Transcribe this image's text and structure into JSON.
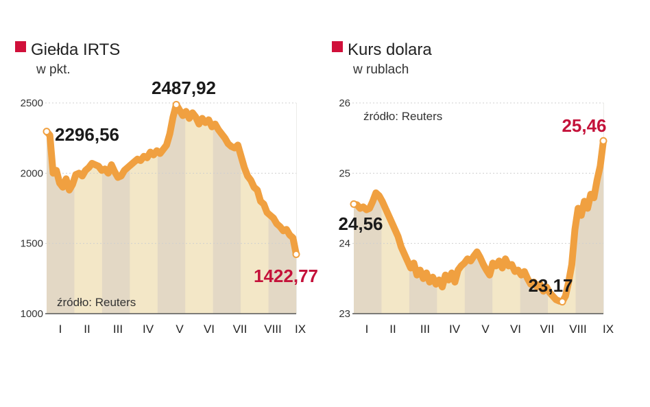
{
  "colors": {
    "marker": "#d0103a",
    "line": "#f0a040",
    "area": "#f6d9ab",
    "band_even": "#d9d8d3",
    "band_odd": "#f2efd6",
    "axis": "#555555",
    "annotation_dark": "#1a1a1a",
    "annotation_red": "#c4123a"
  },
  "chart_data": [
    {
      "type": "line",
      "title": "Giełda IRTS",
      "subtitle": "w pkt.",
      "source": "źródło: Reuters",
      "ylim": [
        1000,
        2500
      ],
      "yticks": [
        "2500",
        "2000",
        "1500",
        "1000"
      ],
      "months": [
        "I",
        "II",
        "III",
        "IV",
        "V",
        "VI",
        "VII",
        "VIII",
        "IX"
      ],
      "annotations": [
        {
          "label": "2296,56",
          "index": 0,
          "style": "dark"
        },
        {
          "label": "2487,92",
          "index": 40,
          "style": "dark"
        },
        {
          "label": "1422,77",
          "index": 77,
          "style": "red"
        }
      ],
      "values": [
        2296.56,
        2270,
        2000,
        2020,
        1930,
        1900,
        1960,
        1880,
        1920,
        1990,
        2000,
        1980,
        2020,
        2040,
        2070,
        2060,
        2050,
        2020,
        2030,
        2000,
        2060,
        2010,
        1970,
        1980,
        2020,
        2040,
        2060,
        2080,
        2100,
        2090,
        2120,
        2110,
        2150,
        2130,
        2160,
        2140,
        2170,
        2200,
        2280,
        2400,
        2487.92,
        2450,
        2410,
        2440,
        2390,
        2430,
        2400,
        2350,
        2390,
        2360,
        2380,
        2330,
        2350,
        2310,
        2280,
        2250,
        2210,
        2190,
        2180,
        2200,
        2120,
        2040,
        1980,
        1950,
        1900,
        1880,
        1800,
        1780,
        1720,
        1700,
        1680,
        1640,
        1620,
        1590,
        1600,
        1560,
        1540,
        1422.77
      ]
    },
    {
      "type": "line",
      "title": "Kurs dolara",
      "subtitle": "w rublach",
      "source": "źródło: Reuters",
      "ylim": [
        23,
        26
      ],
      "yticks": [
        "26",
        "25",
        "24",
        "23"
      ],
      "months": [
        "I",
        "II",
        "III",
        "IV",
        "V",
        "VI",
        "VII",
        "VIII",
        "IX"
      ],
      "annotations": [
        {
          "label": "24,56",
          "index": 0,
          "style": "dark"
        },
        {
          "label": "23,17",
          "index": 66,
          "style": "dark"
        },
        {
          "label": "25,46",
          "index": 79,
          "style": "red"
        }
      ],
      "values": [
        24.56,
        24.55,
        24.5,
        24.52,
        24.48,
        24.5,
        24.6,
        24.72,
        24.68,
        24.6,
        24.5,
        24.4,
        24.3,
        24.2,
        24.1,
        23.95,
        23.85,
        23.75,
        23.65,
        23.72,
        23.55,
        23.62,
        23.5,
        23.58,
        23.45,
        23.52,
        23.42,
        23.48,
        23.38,
        23.55,
        23.48,
        23.58,
        23.45,
        23.62,
        23.68,
        23.72,
        23.78,
        23.75,
        23.82,
        23.88,
        23.8,
        23.7,
        23.62,
        23.55,
        23.72,
        23.68,
        23.75,
        23.65,
        23.78,
        23.68,
        23.7,
        23.6,
        23.62,
        23.55,
        23.6,
        23.5,
        23.42,
        23.45,
        23.38,
        23.42,
        23.32,
        23.38,
        23.3,
        23.25,
        23.2,
        23.18,
        23.17,
        23.25,
        23.45,
        23.7,
        24.2,
        24.5,
        24.4,
        24.6,
        24.5,
        24.7,
        24.65,
        24.9,
        25.1,
        25.46
      ]
    }
  ]
}
